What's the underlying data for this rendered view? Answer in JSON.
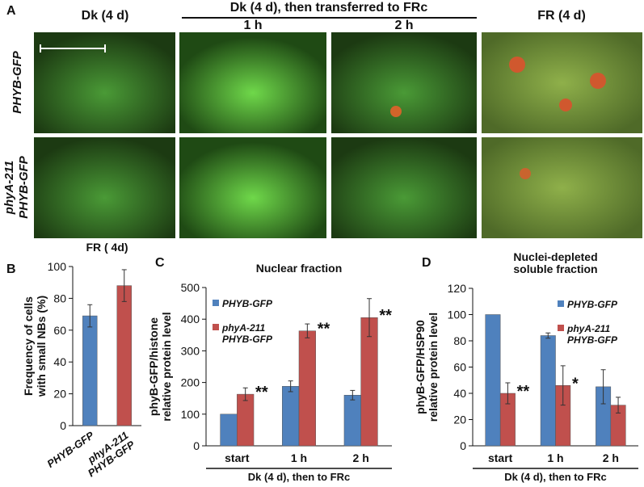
{
  "panel_a": {
    "letter": "A",
    "columns": [
      "Dk (4 d)",
      "1 h",
      "2 h",
      "FR (4 d)"
    ],
    "group_label": "Dk (4 d), then transferred to FRc",
    "rows": [
      "PHYB-GFP",
      "phyA-211 PHYB-GFP"
    ]
  },
  "chart_data": [
    {
      "type": "bar",
      "letter": "B",
      "title": [
        "FR ( 4d)"
      ],
      "ylabel": [
        "Frequency of cells",
        "with small NBs (%)"
      ],
      "categories": [
        "PHYB-GFP",
        "phyA-211 PHYB-GFP"
      ],
      "values": [
        69,
        88
      ],
      "errors": [
        7,
        10
      ],
      "colors": [
        "#4f81bd",
        "#c0504d"
      ],
      "ylim": [
        0,
        100
      ],
      "yticks": [
        0,
        20,
        40,
        60,
        80,
        100
      ]
    },
    {
      "type": "grouped_bar",
      "letter": "C",
      "title": [
        "Nuclear fraction"
      ],
      "ylabel": [
        "phyB-GFP/histone",
        "relative protein level"
      ],
      "xlabel": "Dk (4 d), then to FRc",
      "categories": [
        "start",
        "1 h",
        "2 h"
      ],
      "series": [
        {
          "name": "PHYB-GFP",
          "color": "#4f81bd",
          "values": [
            100,
            188,
            160
          ],
          "errors": [
            0,
            17,
            15
          ],
          "significance": [
            null,
            null,
            null
          ]
        },
        {
          "name": "phyA-211 PHYB-GFP",
          "color": "#c0504d",
          "values": [
            163,
            363,
            405
          ],
          "errors": [
            20,
            22,
            60
          ],
          "significance": [
            "**",
            "**",
            "**"
          ]
        }
      ],
      "ylim": [
        0,
        500
      ],
      "yticks": [
        0,
        100,
        200,
        300,
        400,
        500
      ],
      "legend": "upper left"
    },
    {
      "type": "grouped_bar",
      "letter": "D",
      "title": [
        "Nuclei-depleted",
        "soluble fraction"
      ],
      "ylabel": [
        "phyB-GFP/HSP90",
        "relative protein level"
      ],
      "xlabel": "Dk (4 d), then to FRc",
      "categories": [
        "start",
        "1 h",
        "2 h"
      ],
      "series": [
        {
          "name": "PHYB-GFP",
          "color": "#4f81bd",
          "values": [
            100,
            84,
            45
          ],
          "errors": [
            0,
            2,
            13
          ],
          "significance": [
            null,
            null,
            null
          ]
        },
        {
          "name": "phyA-211 PHYB-GFP",
          "color": "#c0504d",
          "values": [
            40,
            46,
            31
          ],
          "errors": [
            8,
            15,
            6
          ],
          "significance": [
            "**",
            "*",
            null
          ]
        }
      ],
      "ylim": [
        0,
        120
      ],
      "yticks": [
        0,
        20,
        40,
        60,
        80,
        100,
        120
      ],
      "legend": "upper right"
    }
  ]
}
